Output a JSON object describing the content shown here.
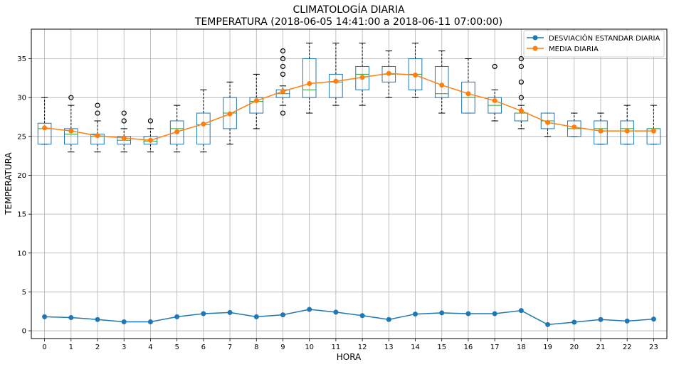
{
  "chart_data": {
    "type": "box+line",
    "title": "CLIMATOLOGÍA DIARIA",
    "subtitle": "TEMPERATURA (2018-06-05 14:41:00 a 2018-06-11 07:00:00)",
    "xlabel": "HORA",
    "ylabel": "TEMPERATURA",
    "ylim": [
      -1,
      38.8
    ],
    "yticks": [
      0,
      5,
      10,
      15,
      20,
      25,
      30,
      35
    ],
    "categories": [
      "0",
      "1",
      "2",
      "3",
      "4",
      "5",
      "6",
      "7",
      "8",
      "9",
      "10",
      "11",
      "12",
      "13",
      "14",
      "15",
      "16",
      "17",
      "18",
      "19",
      "20",
      "21",
      "22",
      "23"
    ],
    "grid": true,
    "legend_position": "top-right",
    "colors": {
      "std": "#1f77b4",
      "mean": "#ff7f0e",
      "median": "#2ca02c",
      "box": "#1f77b4",
      "whisker": "#000000"
    },
    "boxes": [
      {
        "hora": 0,
        "whislo": 24,
        "q1": 24,
        "med": 26,
        "q3": 26.7,
        "whishi": 30,
        "fliers": []
      },
      {
        "hora": 1,
        "whislo": 23,
        "q1": 24,
        "med": 25.3,
        "q3": 26,
        "whishi": 29,
        "fliers": [
          30
        ]
      },
      {
        "hora": 2,
        "whislo": 23,
        "q1": 24,
        "med": 25,
        "q3": 25.3,
        "whishi": 27,
        "fliers": [
          28,
          29
        ]
      },
      {
        "hora": 3,
        "whislo": 23,
        "q1": 24,
        "med": 24.5,
        "q3": 25,
        "whishi": 26,
        "fliers": [
          27,
          28
        ]
      },
      {
        "hora": 4,
        "whislo": 23,
        "q1": 24,
        "med": 24.4,
        "q3": 25,
        "whishi": 26,
        "fliers": [
          27
        ]
      },
      {
        "hora": 5,
        "whislo": 23,
        "q1": 24,
        "med": 26,
        "q3": 27,
        "whishi": 29,
        "fliers": []
      },
      {
        "hora": 6,
        "whislo": 23,
        "q1": 24,
        "med": 26.5,
        "q3": 28,
        "whishi": 31,
        "fliers": []
      },
      {
        "hora": 7,
        "whislo": 24,
        "q1": 26,
        "med": 28,
        "q3": 30,
        "whishi": 32,
        "fliers": []
      },
      {
        "hora": 8,
        "whislo": 26,
        "q1": 28,
        "med": 29.5,
        "q3": 30,
        "whishi": 33,
        "fliers": []
      },
      {
        "hora": 9,
        "whislo": 29,
        "q1": 30,
        "med": 30.5,
        "q3": 31,
        "whishi": 31.5,
        "fliers": [
          28,
          33,
          34,
          35,
          36
        ]
      },
      {
        "hora": 10,
        "whislo": 28,
        "q1": 30,
        "med": 31,
        "q3": 35,
        "whishi": 37,
        "fliers": []
      },
      {
        "hora": 11,
        "whislo": 29,
        "q1": 30,
        "med": 32,
        "q3": 33,
        "whishi": 37,
        "fliers": []
      },
      {
        "hora": 12,
        "whislo": 29,
        "q1": 31,
        "med": 33,
        "q3": 34,
        "whishi": 37,
        "fliers": []
      },
      {
        "hora": 13,
        "whislo": 30,
        "q1": 32,
        "med": 33,
        "q3": 34,
        "whishi": 36,
        "fliers": []
      },
      {
        "hora": 14,
        "whislo": 30,
        "q1": 31,
        "med": 33,
        "q3": 35,
        "whishi": 37,
        "fliers": []
      },
      {
        "hora": 15,
        "whislo": 28,
        "q1": 30,
        "med": 30.5,
        "q3": 34,
        "whishi": 36,
        "fliers": []
      },
      {
        "hora": 16,
        "whislo": 28,
        "q1": 28,
        "med": 30,
        "q3": 32,
        "whishi": 35,
        "fliers": []
      },
      {
        "hora": 17,
        "whislo": 27,
        "q1": 28,
        "med": 29,
        "q3": 30,
        "whishi": 31,
        "fliers": [
          34
        ]
      },
      {
        "hora": 18,
        "whislo": 26,
        "q1": 27,
        "med": 28,
        "q3": 28,
        "whishi": 29,
        "fliers": [
          30,
          32,
          34,
          35
        ]
      },
      {
        "hora": 19,
        "whislo": 25,
        "q1": 26,
        "med": 27,
        "q3": 28,
        "whishi": 28,
        "fliers": []
      },
      {
        "hora": 20,
        "whislo": 25,
        "q1": 25,
        "med": 26,
        "q3": 27,
        "whishi": 28,
        "fliers": []
      },
      {
        "hora": 21,
        "whislo": 24,
        "q1": 24,
        "med": 26,
        "q3": 27,
        "whishi": 28,
        "fliers": []
      },
      {
        "hora": 22,
        "whislo": 24,
        "q1": 24,
        "med": 26,
        "q3": 27,
        "whishi": 29,
        "fliers": []
      },
      {
        "hora": 23,
        "whislo": 24,
        "q1": 24,
        "med": 26,
        "q3": 26,
        "whishi": 29,
        "fliers": []
      }
    ],
    "series": [
      {
        "name": "DESVIACIÓN ESTANDAR DIARIA",
        "color": "#1f77b4",
        "values": [
          1.8,
          1.7,
          1.45,
          1.15,
          1.15,
          1.8,
          2.2,
          2.35,
          1.8,
          2.05,
          2.75,
          2.4,
          1.95,
          1.45,
          2.15,
          2.3,
          2.2,
          2.2,
          2.6,
          0.8,
          1.1,
          1.45,
          1.25,
          1.5
        ]
      },
      {
        "name": "MEDIA DIARIA",
        "color": "#ff7f0e",
        "values": [
          26.1,
          25.7,
          25.1,
          24.8,
          24.5,
          25.6,
          26.6,
          27.9,
          29.6,
          30.8,
          31.8,
          32.1,
          32.6,
          33.1,
          32.9,
          31.6,
          30.5,
          29.6,
          28.3,
          26.8,
          26.2,
          25.7,
          25.7,
          25.7
        ]
      }
    ]
  }
}
